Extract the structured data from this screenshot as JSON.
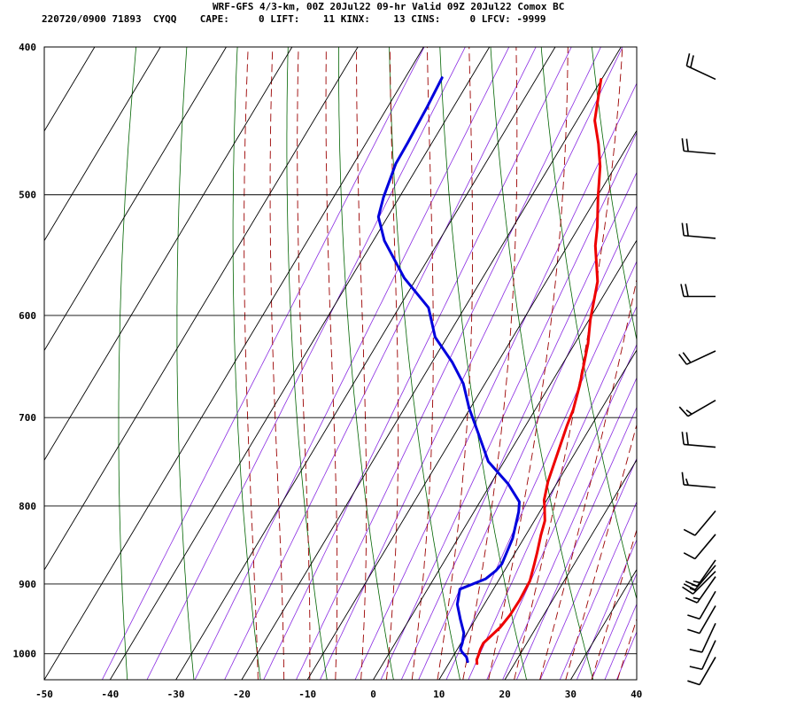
{
  "header": {
    "title": "WRF-GFS 4/3-km, 00Z 20Jul22 09-hr Valid 09Z 20Jul22 Comox BC",
    "station_line": "220720/0900 71893  CYQQ    CAPE:     0 LIFT:    11 KINX:    13 CINS:     0 LFCV: -9999"
  },
  "chart_data": {
    "type": "line",
    "title": "WRF-GFS 4/3-km, 00Z 20Jul22 09-hr Valid 09Z 20Jul22 Comox BC",
    "xlabel": "",
    "ylabel": "",
    "xlim": [
      -50,
      40
    ],
    "ylim": [
      1040,
      400
    ],
    "y_scale": "log",
    "grid": true,
    "x_ticks": [
      -50,
      -40,
      -30,
      -20,
      -10,
      0,
      10,
      20,
      30,
      40
    ],
    "x_tick_labels": [
      "-50",
      "-40",
      "-30",
      "-20",
      "-10",
      "0",
      "10",
      "20",
      "30",
      "40"
    ],
    "y_ticks": [
      400,
      500,
      600,
      700,
      800,
      900,
      1000
    ],
    "y_tick_labels": [
      "400",
      "500",
      "600",
      "700",
      "800",
      "900",
      "1000"
    ],
    "series": [
      {
        "color": "#ee0000",
        "x": [
          14.3,
          13.9,
          13.8,
          13.5,
          13.4,
          14.5,
          14.9,
          15.0,
          14.8,
          14.0,
          13.3,
          12.3,
          11.6,
          10.2,
          9.6,
          8.5,
          6.3,
          5.8,
          4.5,
          2.0,
          0.2,
          -2.2,
          -5.8,
          -7.2,
          -9.8,
          -12.3,
          -14.6,
          -17.3,
          -20.1
        ],
        "y": [
          1015,
          1009,
          1004,
          993,
          984,
          961,
          943,
          922,
          896,
          875,
          858,
          836,
          818,
          800,
          793,
          771,
          709,
          692,
          666,
          626,
          604,
          570,
          540,
          525,
          502,
          479,
          463,
          447,
          420
        ]
      },
      {
        "color": "#0000dd",
        "x": [
          12.7,
          12.1,
          10.9,
          10.4,
          10.2,
          9.5,
          7.8,
          5.9,
          4.9,
          7.9,
          8.7,
          9.0,
          8.3,
          6.8,
          6.0,
          2.7,
          -2.4,
          -6.6,
          -10.2,
          -13.3,
          -16.9,
          -21.8,
          -25.5,
          -31.9,
          -38.3,
          -41.4,
          -42.4,
          -43.6,
          -43.7,
          -44.0,
          -44.4
        ],
        "y": [
          1012,
          1005,
          997,
          992,
          984,
          969,
          950,
          928,
          907,
          893,
          882,
          873,
          840,
          807,
          795,
          774,
          748,
          716,
          690,
          665,
          644,
          620,
          593,
          567,
          536,
          517,
          502,
          477,
          462,
          438,
          419
        ]
      }
    ],
    "isotherm_color": "#000000",
    "dry_adiabat_color": "#006400",
    "moist_adiabat_color": "#9b0000",
    "mixing_ratio_color": "#8a2be2",
    "wind_barbs": [
      {
        "p": 420,
        "dir": 295,
        "kt": 20
      },
      {
        "p": 470,
        "dir": 275,
        "kt": 20
      },
      {
        "p": 534,
        "dir": 275,
        "kt": 20
      },
      {
        "p": 583,
        "dir": 270,
        "kt": 20
      },
      {
        "p": 633,
        "dir": 245,
        "kt": 20
      },
      {
        "p": 682,
        "dir": 240,
        "kt": 15
      },
      {
        "p": 732,
        "dir": 275,
        "kt": 20
      },
      {
        "p": 778,
        "dir": 275,
        "kt": 15
      },
      {
        "p": 806,
        "dir": 220,
        "kt": 10
      },
      {
        "p": 835,
        "dir": 220,
        "kt": 10
      },
      {
        "p": 868,
        "dir": 215,
        "kt": 15
      },
      {
        "p": 875,
        "dir": 220,
        "kt": 15
      },
      {
        "p": 883,
        "dir": 225,
        "kt": 15
      },
      {
        "p": 890,
        "dir": 215,
        "kt": 15
      },
      {
        "p": 910,
        "dir": 210,
        "kt": 10
      },
      {
        "p": 930,
        "dir": 210,
        "kt": 10
      },
      {
        "p": 955,
        "dir": 205,
        "kt": 10
      },
      {
        "p": 980,
        "dir": 205,
        "kt": 10
      },
      {
        "p": 1005,
        "dir": 210,
        "kt": 10
      }
    ]
  }
}
